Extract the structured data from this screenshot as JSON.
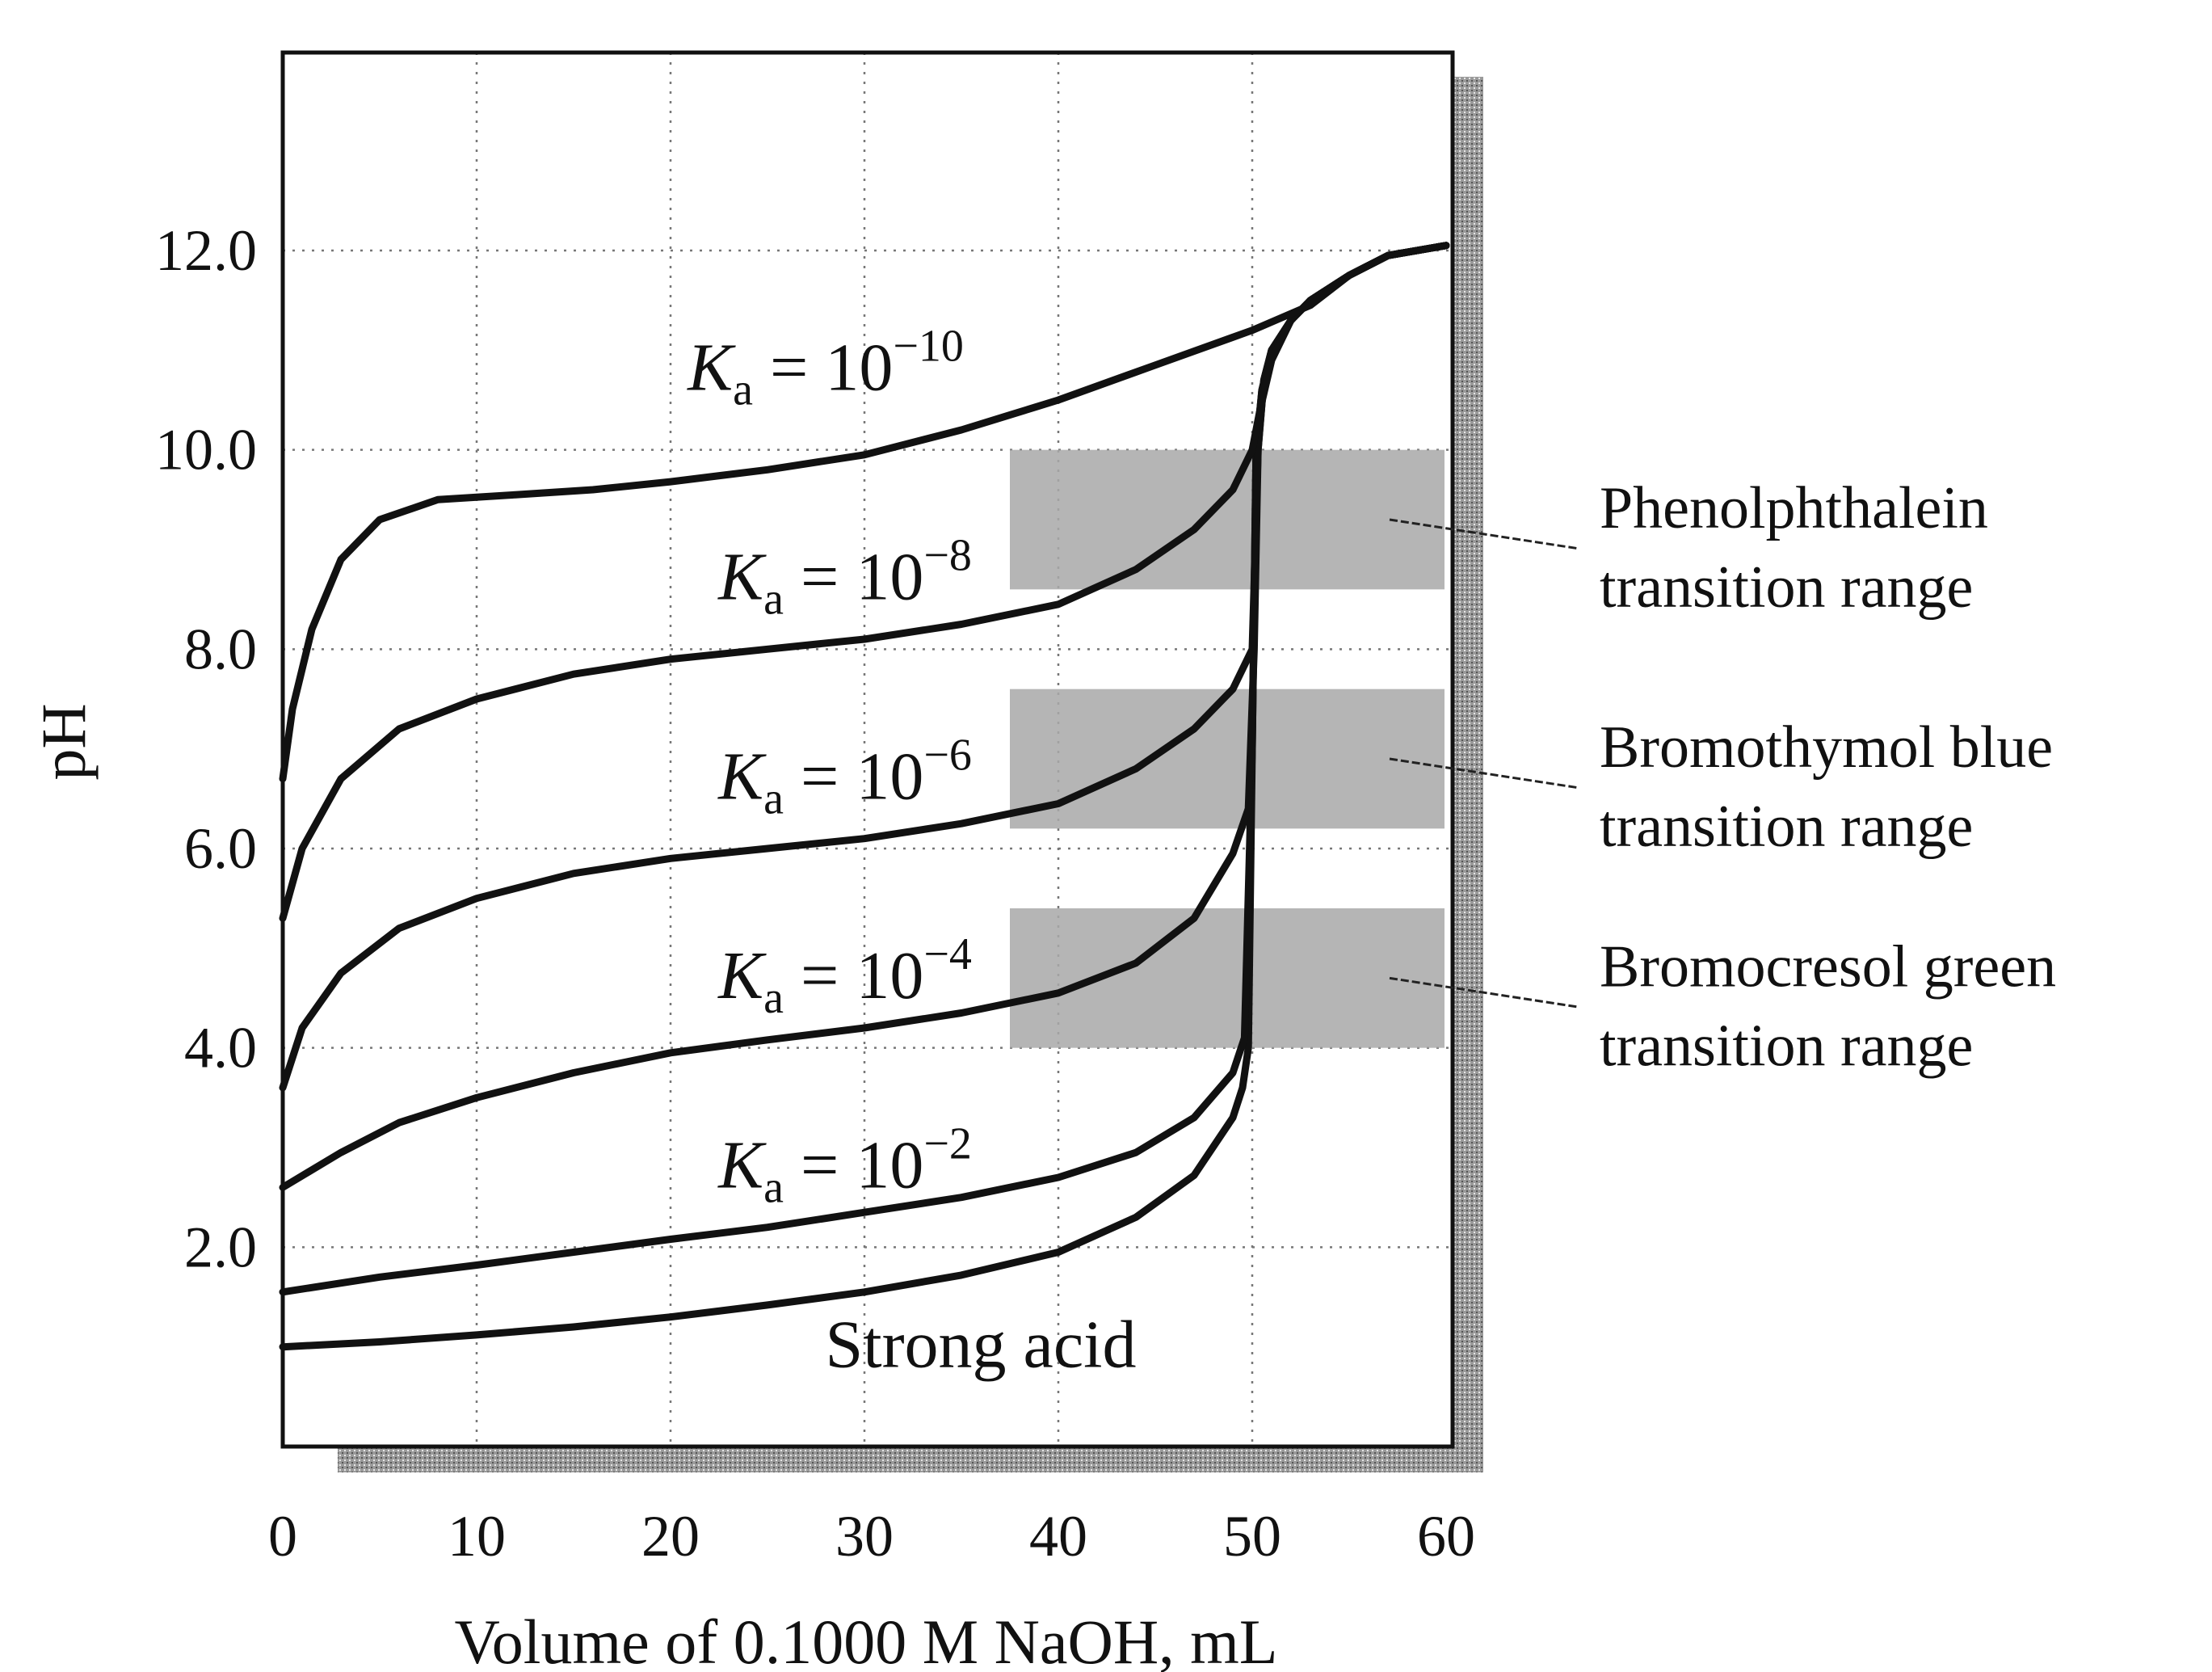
{
  "chart_data": {
    "type": "line",
    "title": "",
    "xlabel": "Volume of 0.1000 M NaOH, mL",
    "ylabel": "pH",
    "xlim": [
      0,
      60
    ],
    "ylim": [
      0,
      14
    ],
    "x_ticks": [
      {
        "value": 0,
        "label": "0"
      },
      {
        "value": 10,
        "label": "10"
      },
      {
        "value": 20,
        "label": "20"
      },
      {
        "value": 30,
        "label": "30"
      },
      {
        "value": 40,
        "label": "40"
      },
      {
        "value": 50,
        "label": "50"
      },
      {
        "value": 60,
        "label": "60"
      }
    ],
    "y_ticks": [
      {
        "value": 2,
        "label": "2.0"
      },
      {
        "value": 4,
        "label": "4.0"
      },
      {
        "value": 6,
        "label": "6.0"
      },
      {
        "value": 8,
        "label": "8.0"
      },
      {
        "value": 10,
        "label": "10.0"
      },
      {
        "value": 12,
        "label": "12.0"
      }
    ],
    "grid": true,
    "series": [
      {
        "name": "Strong acid",
        "label_at": [
          36,
          0.8
        ],
        "points": [
          [
            0,
            1.0
          ],
          [
            5,
            1.05
          ],
          [
            10,
            1.12
          ],
          [
            15,
            1.2
          ],
          [
            20,
            1.3
          ],
          [
            25,
            1.42
          ],
          [
            30,
            1.55
          ],
          [
            35,
            1.72
          ],
          [
            40,
            1.95
          ],
          [
            44,
            2.3
          ],
          [
            47,
            2.72
          ],
          [
            49,
            3.3
          ],
          [
            49.5,
            3.6
          ],
          [
            49.8,
            4.0
          ],
          [
            50,
            7.0
          ],
          [
            50.2,
            10.0
          ],
          [
            50.5,
            10.6
          ],
          [
            51,
            11.0
          ],
          [
            52,
            11.3
          ],
          [
            53,
            11.5
          ],
          [
            55,
            11.75
          ],
          [
            57,
            11.95
          ],
          [
            60,
            12.05
          ]
        ]
      },
      {
        "name": "Ka = 10⁻²",
        "label_ka": "K",
        "label_sub": "a",
        "label_eq": " = 10",
        "label_exp": "−2",
        "label_at": [
          29,
          2.6
        ],
        "points": [
          [
            0,
            1.55
          ],
          [
            5,
            1.7
          ],
          [
            10,
            1.82
          ],
          [
            15,
            1.95
          ],
          [
            20,
            2.08
          ],
          [
            25,
            2.2
          ],
          [
            30,
            2.35
          ],
          [
            35,
            2.5
          ],
          [
            40,
            2.7
          ],
          [
            44,
            2.95
          ],
          [
            47,
            3.3
          ],
          [
            49,
            3.75
          ],
          [
            49.6,
            4.1
          ],
          [
            50,
            7.0
          ],
          [
            50.2,
            10.0
          ],
          [
            50.5,
            10.6
          ],
          [
            51,
            11.0
          ],
          [
            52,
            11.3
          ],
          [
            53,
            11.5
          ],
          [
            55,
            11.75
          ],
          [
            57,
            11.95
          ],
          [
            60,
            12.05
          ]
        ]
      },
      {
        "name": "Ka = 10⁻⁴",
        "label_ka": "K",
        "label_sub": "a",
        "label_eq": " = 10",
        "label_exp": "−4",
        "label_at": [
          29,
          4.5
        ],
        "points": [
          [
            0,
            2.6
          ],
          [
            3,
            2.95
          ],
          [
            6,
            3.25
          ],
          [
            10,
            3.5
          ],
          [
            15,
            3.75
          ],
          [
            20,
            3.95
          ],
          [
            25,
            4.08
          ],
          [
            30,
            4.2
          ],
          [
            35,
            4.35
          ],
          [
            40,
            4.55
          ],
          [
            44,
            4.85
          ],
          [
            47,
            5.3
          ],
          [
            49,
            5.95
          ],
          [
            49.8,
            6.4
          ],
          [
            50.1,
            8.0
          ],
          [
            50.3,
            10.0
          ],
          [
            50.6,
            10.7
          ],
          [
            51,
            11.0
          ],
          [
            52,
            11.3
          ],
          [
            53,
            11.5
          ],
          [
            55,
            11.75
          ],
          [
            57,
            11.95
          ],
          [
            60,
            12.05
          ]
        ]
      },
      {
        "name": "Ka = 10⁻⁶",
        "label_ka": "K",
        "label_sub": "a",
        "label_eq": " = 10",
        "label_exp": "−6",
        "label_at": [
          29,
          6.5
        ],
        "points": [
          [
            0,
            3.6
          ],
          [
            1,
            4.2
          ],
          [
            3,
            4.75
          ],
          [
            6,
            5.2
          ],
          [
            10,
            5.5
          ],
          [
            15,
            5.75
          ],
          [
            20,
            5.9
          ],
          [
            25,
            6.0
          ],
          [
            30,
            6.1
          ],
          [
            35,
            6.25
          ],
          [
            40,
            6.45
          ],
          [
            44,
            6.8
          ],
          [
            47,
            7.2
          ],
          [
            49,
            7.6
          ],
          [
            50,
            8.0
          ],
          [
            50.3,
            10.0
          ],
          [
            50.6,
            10.7
          ],
          [
            51,
            11.0
          ],
          [
            52,
            11.3
          ],
          [
            53,
            11.5
          ],
          [
            55,
            11.75
          ],
          [
            57,
            11.95
          ],
          [
            60,
            12.05
          ]
        ]
      },
      {
        "name": "Ka = 10⁻⁸",
        "label_ka": "K",
        "label_sub": "a",
        "label_eq": " = 10",
        "label_exp": "−8",
        "label_at": [
          29,
          8.5
        ],
        "points": [
          [
            0,
            5.3
          ],
          [
            1,
            6.0
          ],
          [
            3,
            6.7
          ],
          [
            6,
            7.2
          ],
          [
            10,
            7.5
          ],
          [
            15,
            7.75
          ],
          [
            20,
            7.9
          ],
          [
            25,
            8.0
          ],
          [
            30,
            8.1
          ],
          [
            35,
            8.25
          ],
          [
            40,
            8.45
          ],
          [
            44,
            8.8
          ],
          [
            47,
            9.2
          ],
          [
            49,
            9.6
          ],
          [
            50,
            10.0
          ],
          [
            50.4,
            10.4
          ],
          [
            51,
            10.9
          ],
          [
            52,
            11.3
          ],
          [
            53,
            11.5
          ],
          [
            55,
            11.75
          ],
          [
            57,
            11.95
          ],
          [
            60,
            12.05
          ]
        ]
      },
      {
        "name": "Ka = 10⁻¹⁰",
        "label_ka": "K",
        "label_sub": "a",
        "label_eq": " = 10",
        "label_exp": "−10",
        "label_at": [
          28,
          10.6
        ],
        "points": [
          [
            0,
            6.7
          ],
          [
            0.5,
            7.4
          ],
          [
            1.5,
            8.2
          ],
          [
            3,
            8.9
          ],
          [
            5,
            9.3
          ],
          [
            8,
            9.5
          ],
          [
            12,
            9.55
          ],
          [
            16,
            9.6
          ],
          [
            20,
            9.68
          ],
          [
            25,
            9.8
          ],
          [
            30,
            9.95
          ],
          [
            35,
            10.2
          ],
          [
            40,
            10.5
          ],
          [
            45,
            10.85
          ],
          [
            50,
            11.2
          ],
          [
            53,
            11.45
          ],
          [
            55,
            11.75
          ],
          [
            57,
            11.95
          ],
          [
            60,
            12.05
          ]
        ]
      }
    ],
    "bands": [
      {
        "name": "Phenolphthalein transition range",
        "line1": "Phenolphthalein",
        "line2": "transition range",
        "y0": 8.6,
        "y1": 10.0,
        "x0": 37.5,
        "x1": 60
      },
      {
        "name": "Bromothymol blue transition range",
        "line1": "Bromothymol blue",
        "line2": "transition range",
        "y0": 6.2,
        "y1": 7.6,
        "x0": 37.5,
        "x1": 60
      },
      {
        "name": "Bromocresol green transition range",
        "line1": "Bromocresol green",
        "line2": "transition range",
        "y0": 4.0,
        "y1": 5.4,
        "x0": 37.5,
        "x1": 60
      }
    ]
  }
}
